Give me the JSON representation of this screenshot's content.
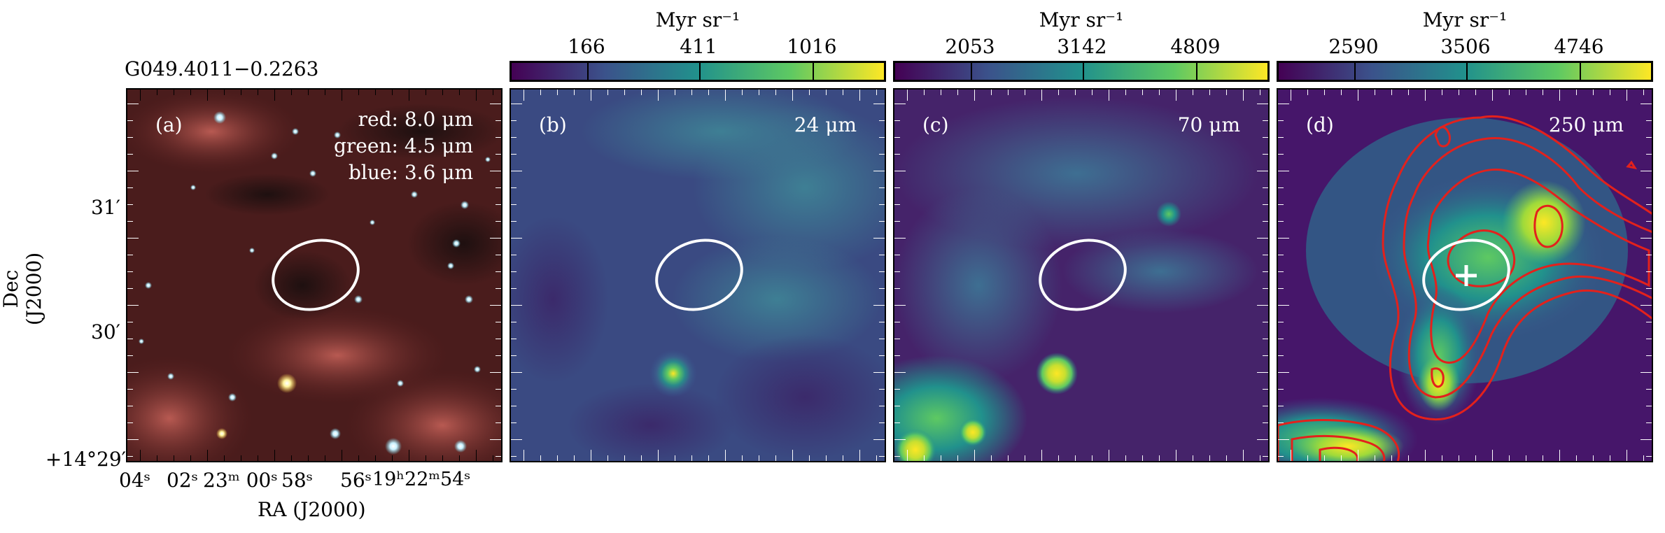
{
  "source_name": "G049.4011−0.2263",
  "panels": [
    {
      "label": "(a)",
      "bands": [
        "red: 8.0 μm",
        "green: 4.5 μm",
        "blue: 3.6 μm"
      ]
    },
    {
      "label": "(b)",
      "wavelength": "24 μm"
    },
    {
      "label": "(c)",
      "wavelength": "70 μm"
    },
    {
      "label": "(d)",
      "wavelength": "250 μm"
    }
  ],
  "colorbars": [
    {
      "unit": "Myr sr⁻¹",
      "ticks": [
        "166",
        "411",
        "1016"
      ]
    },
    {
      "unit": "Myr sr⁻¹",
      "ticks": [
        "2053",
        "3142",
        "4809"
      ]
    },
    {
      "unit": "Myr sr⁻¹",
      "ticks": [
        "2590",
        "3506",
        "4746"
      ]
    }
  ],
  "axes": {
    "ylabel": "Dec (J2000)",
    "xlabel": "RA (J2000)",
    "yticks": [
      "31′",
      "30′",
      "+14°29′"
    ],
    "xticks": [
      "04ˢ",
      "02ˢ",
      "23ᵐ 00ˢ",
      "58ˢ",
      "56ˢ",
      "19ʰ22ᵐ54ˢ"
    ]
  },
  "colors": {
    "viridis": [
      "#440154",
      "#3b528b",
      "#21918c",
      "#5ec962",
      "#fde725"
    ],
    "ellipse": "#ffffff",
    "contour": "#e3211c"
  }
}
